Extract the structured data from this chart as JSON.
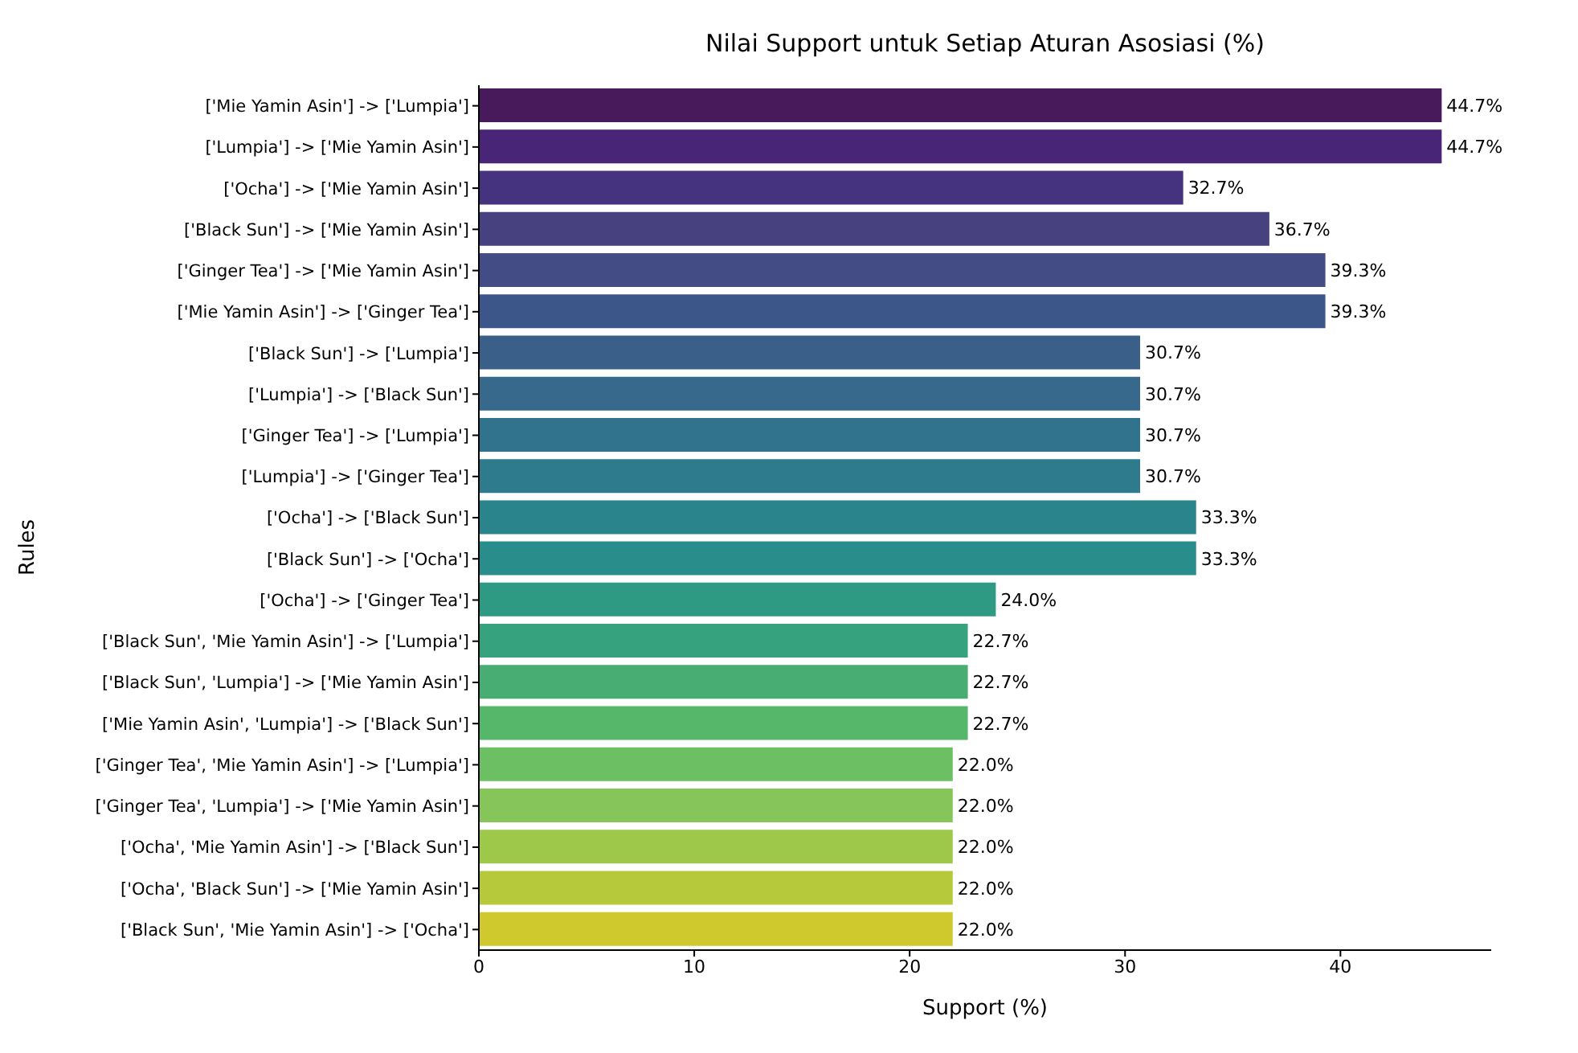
{
  "chart_data": {
    "type": "bar",
    "orientation": "horizontal",
    "title": "Nilai Support untuk Setiap Aturan Asosiasi (%)",
    "xlabel": "Support (%)",
    "ylabel": "Rules",
    "categories": [
      "['Mie Yamin Asin'] -> ['Lumpia']",
      "['Lumpia'] -> ['Mie Yamin Asin']",
      "['Ocha'] -> ['Mie Yamin Asin']",
      "['Black Sun'] -> ['Mie Yamin Asin']",
      "['Ginger Tea'] -> ['Mie Yamin Asin']",
      "['Mie Yamin Asin'] -> ['Ginger Tea']",
      "['Black Sun'] -> ['Lumpia']",
      "['Lumpia'] -> ['Black Sun']",
      "['Ginger Tea'] -> ['Lumpia']",
      "['Lumpia'] -> ['Ginger Tea']",
      "['Ocha'] -> ['Black Sun']",
      "['Black Sun'] -> ['Ocha']",
      "['Ocha'] -> ['Ginger Tea']",
      "['Black Sun', 'Mie Yamin Asin'] -> ['Lumpia']",
      "['Black Sun', 'Lumpia'] -> ['Mie Yamin Asin']",
      "['Mie Yamin Asin', 'Lumpia'] -> ['Black Sun']",
      "['Ginger Tea', 'Mie Yamin Asin'] -> ['Lumpia']",
      "['Ginger Tea', 'Lumpia'] -> ['Mie Yamin Asin']",
      "['Ocha', 'Mie Yamin Asin'] -> ['Black Sun']",
      "['Ocha', 'Black Sun'] -> ['Mie Yamin Asin']",
      "['Black Sun', 'Mie Yamin Asin'] -> ['Ocha']"
    ],
    "values": [
      44.7,
      44.7,
      32.7,
      36.7,
      39.3,
      39.3,
      30.7,
      30.7,
      30.7,
      30.7,
      33.3,
      33.3,
      24.0,
      22.7,
      22.7,
      22.7,
      22.0,
      22.0,
      22.0,
      22.0,
      22.0
    ],
    "value_labels": [
      "44.7%",
      "44.7%",
      "32.7%",
      "36.7%",
      "39.3%",
      "39.3%",
      "30.7%",
      "30.7%",
      "30.7%",
      "30.7%",
      "33.3%",
      "33.3%",
      "24.0%",
      "22.7%",
      "22.7%",
      "22.7%",
      "22.0%",
      "22.0%",
      "22.0%",
      "22.0%",
      "22.0%"
    ],
    "colors": [
      "#481a5c",
      "#482576",
      "#46337f",
      "#47417f",
      "#434c85",
      "#3d568a",
      "#3a608a",
      "#36698b",
      "#31738c",
      "#2d7b8c",
      "#2a848c",
      "#288d8b",
      "#2f9a84",
      "#37a37e",
      "#47ad72",
      "#56b66a",
      "#6cbf62",
      "#86c55a",
      "#9ec84a",
      "#b6c93a",
      "#cfc92d"
    ],
    "xlim": [
      0,
      47
    ],
    "xticks": [
      0,
      10,
      20,
      30,
      40
    ],
    "grid": false,
    "legend": false
  }
}
